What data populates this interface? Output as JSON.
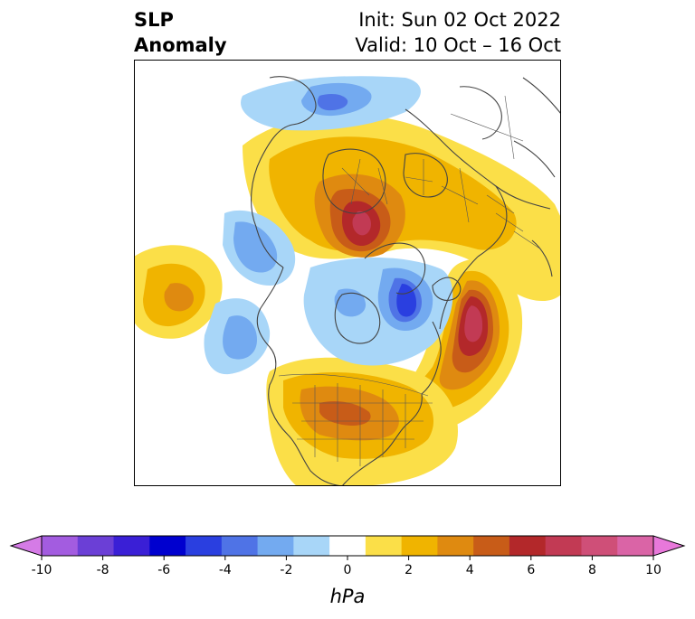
{
  "title": {
    "left_line1": "SLP",
    "left_line2": "Anomaly",
    "right_line1": "Init: Sun 02 Oct 2022",
    "right_line2": "Valid: 10 Oct – 16 Oct"
  },
  "colorbar": {
    "unit_label": "hPa",
    "ticks": [
      "-10",
      "-8",
      "-6",
      "-4",
      "-2",
      "0",
      "2",
      "4",
      "6",
      "8",
      "10"
    ],
    "colors": [
      "#d57be6",
      "#a35ce0",
      "#6b3fd6",
      "#3a1fd6",
      "#0000cf",
      "#2a3fe0",
      "#4f73e6",
      "#73aaf0",
      "#a8d6f8",
      "#ffffff",
      "#fbdf48",
      "#f0b400",
      "#df8a10",
      "#c85c18",
      "#b3282a",
      "#c23a54",
      "#cf4f78",
      "#da64a6",
      "#e878da"
    ]
  },
  "map": {
    "projection": "polar-stereographic",
    "features": [
      "coastlines",
      "country-borders",
      "state-borders"
    ]
  }
}
